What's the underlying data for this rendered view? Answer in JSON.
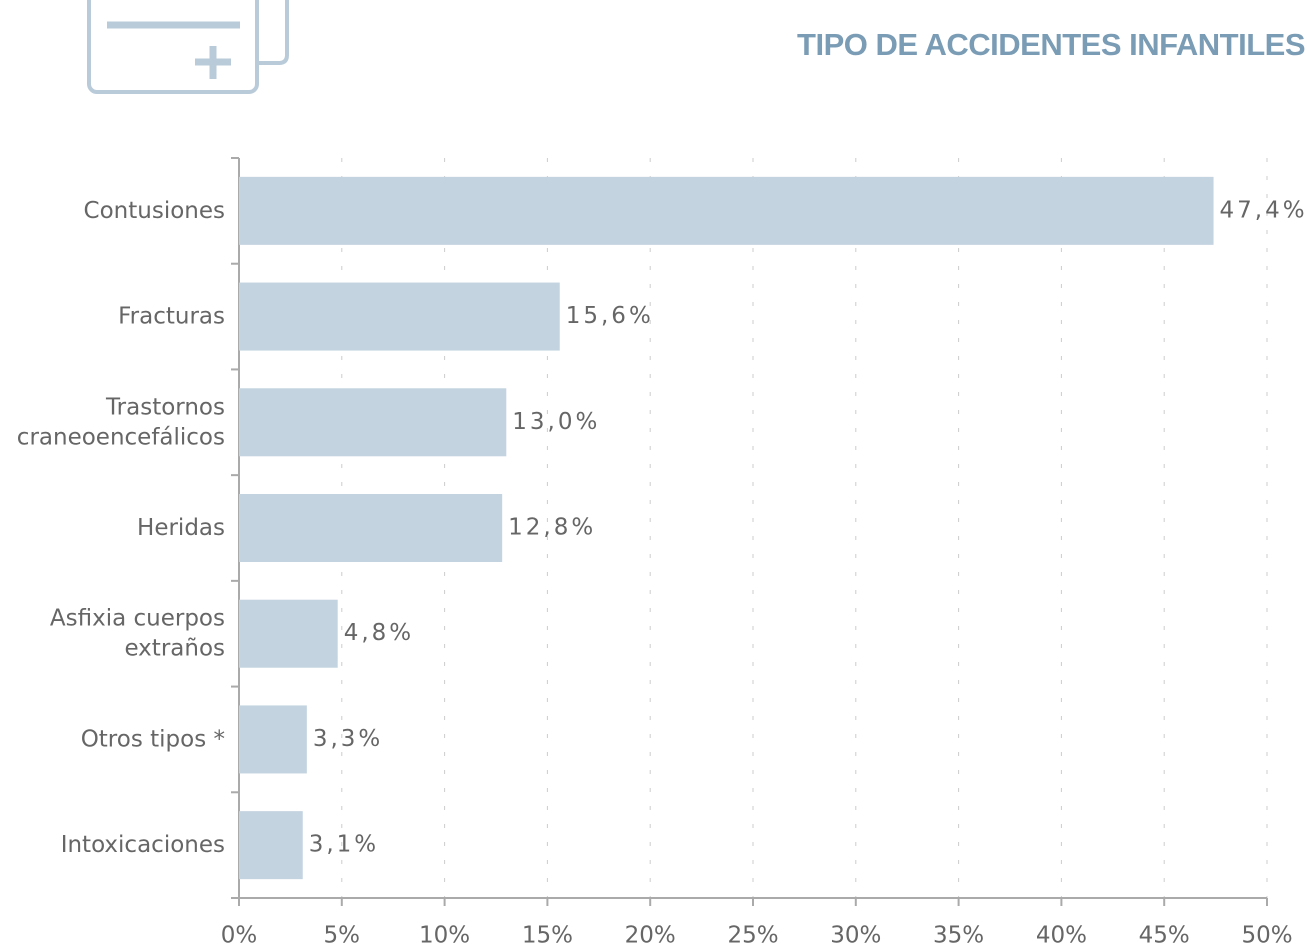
{
  "chart_data": {
    "type": "bar",
    "orientation": "horizontal",
    "title": "TIPO DE ACCIDENTES INFANTILES",
    "categories": [
      [
        "Contusiones"
      ],
      [
        "Fracturas"
      ],
      [
        "Trastornos",
        "craneoencefálicos"
      ],
      [
        "Heridas"
      ],
      [
        "Asfixia cuerpos",
        "extraños"
      ],
      [
        "Otros tipos *"
      ],
      [
        "Intoxicaciones"
      ]
    ],
    "values": [
      47.4,
      15.6,
      13.0,
      12.8,
      4.8,
      3.3,
      3.1
    ],
    "value_labels": [
      "47,4%",
      "15,6%",
      "13,0%",
      "12,8%",
      "4,8%",
      "3,3%",
      "3,1%"
    ],
    "color": "#c3d3df",
    "xlim": [
      0,
      50
    ],
    "xticks": [
      {
        "value": 0,
        "label": "0%"
      },
      {
        "value": 5,
        "label": "5%"
      },
      {
        "value": 10,
        "label": "10%"
      },
      {
        "value": 15,
        "label": "15%"
      },
      {
        "value": 20,
        "label": "20%"
      },
      {
        "value": 25,
        "label": "25%"
      },
      {
        "value": 30,
        "label": "30%"
      },
      {
        "value": 35,
        "label": "35%"
      },
      {
        "value": 40,
        "label": "40%"
      },
      {
        "value": 45,
        "label": "45%"
      },
      {
        "value": 50,
        "label": "50%"
      }
    ],
    "grid": true
  }
}
